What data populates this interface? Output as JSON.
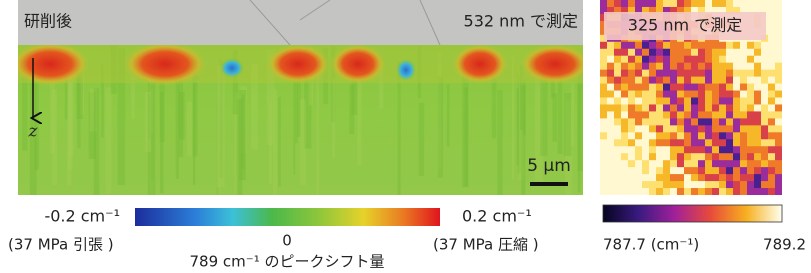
{
  "left_panel": {
    "label": "研削後",
    "condition": "532 nm で測定",
    "axis_label": "z",
    "scale_bar": "5 µm"
  },
  "right_panel": {
    "condition": "325 nm で測定"
  },
  "left_colorbar": {
    "min_label": "-0.2 cm⁻¹",
    "max_label": "0.2 cm⁻¹",
    "min_note": "(37 MPa 引張 )",
    "center_label": "0",
    "max_note": "(37 MPa 圧縮 )",
    "title": "789 cm⁻¹ のピークシフト量"
  },
  "right_colorbar": {
    "min_label": "787.7 (cm⁻¹)",
    "max_label": "789.2"
  }
}
